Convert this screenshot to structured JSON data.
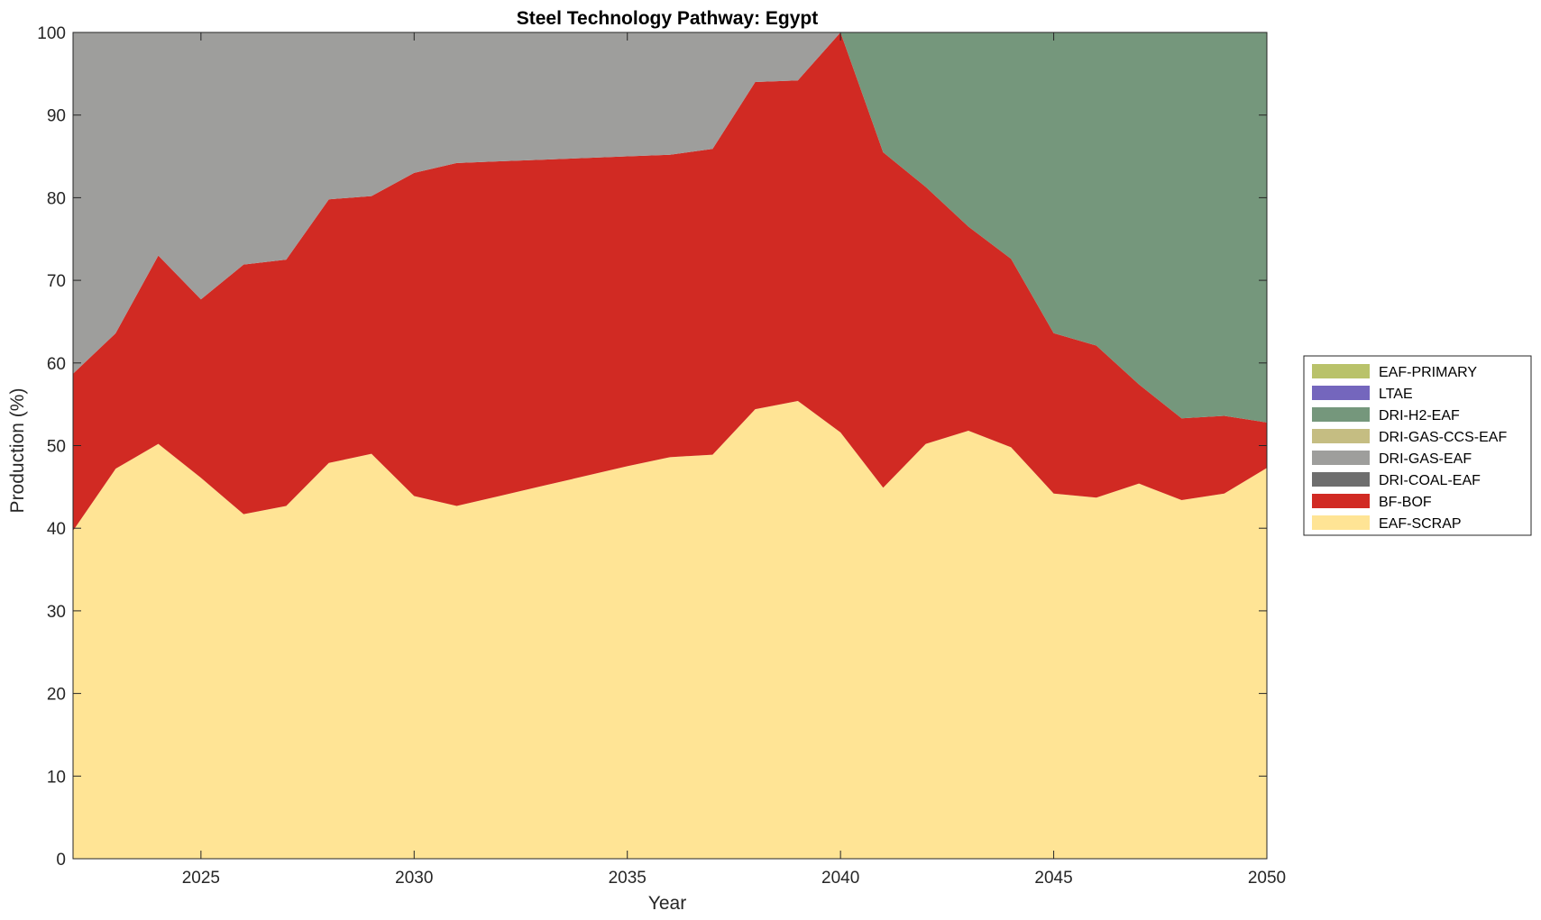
{
  "chart_data": {
    "type": "area",
    "title": "Steel Technology Pathway: Egypt",
    "xlabel": "Year",
    "ylabel": "Production (%)",
    "xlim": [
      2022,
      2050
    ],
    "ylim": [
      0,
      100
    ],
    "xticks": [
      2025,
      2030,
      2035,
      2040,
      2045,
      2050
    ],
    "yticks": [
      0,
      10,
      20,
      30,
      40,
      50,
      60,
      70,
      80,
      90,
      100
    ],
    "stacked": true,
    "legend_position": "right",
    "x": [
      2022,
      2023,
      2024,
      2025,
      2026,
      2027,
      2028,
      2029,
      2030,
      2031,
      2032,
      2033,
      2034,
      2035,
      2036,
      2037,
      2038,
      2039,
      2040,
      2041,
      2042,
      2043,
      2044,
      2045,
      2046,
      2047,
      2048,
      2049,
      2050
    ],
    "series": [
      {
        "name": "EAF-SCRAP",
        "color": "#ffe495",
        "values": [
          39.7,
          47.2,
          50.2,
          46.1,
          41.7,
          42.7,
          47.9,
          49.0,
          43.9,
          42.7,
          43.9,
          45.1,
          46.3,
          47.5,
          48.6,
          48.9,
          54.4,
          55.4,
          51.6,
          44.9,
          50.2,
          51.8,
          49.8,
          44.2,
          43.7,
          45.4,
          43.4,
          44.2,
          47.3
        ]
      },
      {
        "name": "BF-BOF",
        "color": "#d12a23",
        "values": [
          19.0,
          16.4,
          22.8,
          21.6,
          30.2,
          29.8,
          31.9,
          31.2,
          39.1,
          41.5,
          40.5,
          39.5,
          38.5,
          37.5,
          36.6,
          37.0,
          39.6,
          38.8,
          48.4,
          40.6,
          31.1,
          24.7,
          22.8,
          19.4,
          18.4,
          12.0,
          9.9,
          9.4,
          5.5
        ]
      },
      {
        "name": "DRI-COAL-EAF",
        "color": "#6e6e6e",
        "values": [
          0,
          0,
          0,
          0,
          0,
          0,
          0,
          0,
          0,
          0,
          0,
          0,
          0,
          0,
          0,
          0,
          0,
          0,
          0,
          0,
          0,
          0,
          0,
          0,
          0,
          0,
          0,
          0,
          0
        ]
      },
      {
        "name": "DRI-GAS-EAF",
        "color": "#9e9e9c",
        "values": [
          41.3,
          36.4,
          27.0,
          32.3,
          28.1,
          27.5,
          20.2,
          19.8,
          17.0,
          15.8,
          15.6,
          15.4,
          15.2,
          15.0,
          14.8,
          14.1,
          6.0,
          5.8,
          0,
          0,
          0,
          0,
          0,
          0,
          0,
          0,
          0,
          0,
          0
        ]
      },
      {
        "name": "DRI-GAS-CCS-EAF",
        "color": "#c5bd82",
        "values": [
          0,
          0,
          0,
          0,
          0,
          0,
          0,
          0,
          0,
          0,
          0,
          0,
          0,
          0,
          0,
          0,
          0,
          0,
          0,
          0,
          0,
          0,
          0,
          0,
          0,
          0,
          0,
          0,
          0
        ]
      },
      {
        "name": "DRI-H2-EAF",
        "color": "#75977c",
        "values": [
          0,
          0,
          0,
          0,
          0,
          0,
          0,
          0,
          0,
          0,
          0,
          0,
          0,
          0,
          0,
          0,
          0,
          0,
          0,
          14.5,
          18.7,
          23.5,
          27.4,
          36.4,
          37.9,
          42.6,
          46.7,
          46.4,
          47.2
        ]
      },
      {
        "name": "LTAE",
        "color": "#7466bd",
        "values": [
          0,
          0,
          0,
          0,
          0,
          0,
          0,
          0,
          0,
          0,
          0,
          0,
          0,
          0,
          0,
          0,
          0,
          0,
          0,
          0,
          0,
          0,
          0,
          0,
          0,
          0,
          0,
          0,
          0
        ]
      },
      {
        "name": "EAF-PRIMARY",
        "color": "#b9c26a",
        "values": [
          0,
          0,
          0,
          0,
          0,
          0,
          0,
          0,
          0,
          0,
          0,
          0,
          0,
          0,
          0,
          0,
          0,
          0,
          0,
          0,
          0,
          0,
          0,
          0,
          0,
          0,
          0,
          0,
          0
        ]
      }
    ],
    "legend_order": [
      "EAF-PRIMARY",
      "LTAE",
      "DRI-H2-EAF",
      "DRI-GAS-CCS-EAF",
      "DRI-GAS-EAF",
      "DRI-COAL-EAF",
      "BF-BOF",
      "EAF-SCRAP"
    ]
  }
}
